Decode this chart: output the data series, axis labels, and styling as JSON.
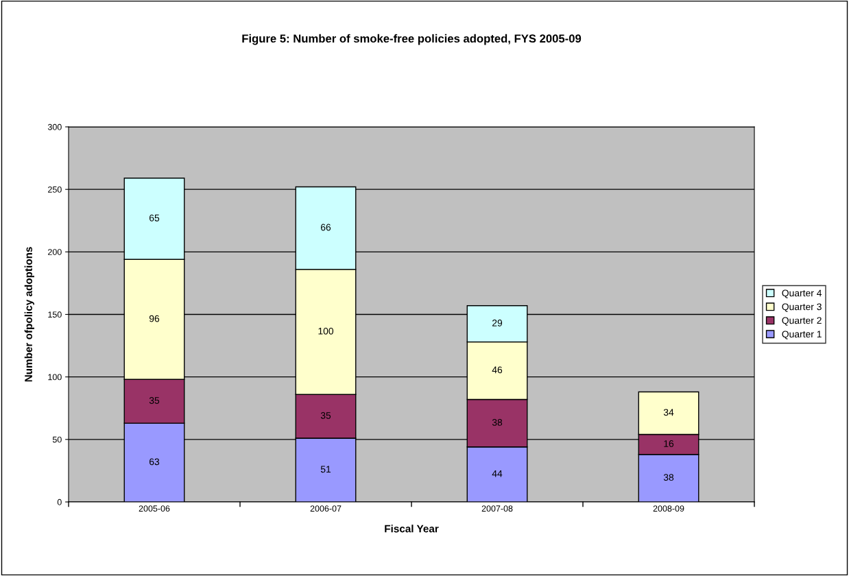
{
  "chart_data": {
    "type": "bar",
    "title": "Figure 5: Number of smoke-free policies adopted, FYS 2005-09",
    "xlabel": "Fiscal Year",
    "ylabel": "Number ofpolicy adoptions",
    "categories": [
      "2005-06",
      "2006-07",
      "2007-08",
      "2008-09"
    ],
    "series": [
      {
        "name": "Quarter 1",
        "color": "#9999ff",
        "values": [
          63,
          51,
          44,
          38
        ]
      },
      {
        "name": "Quarter 2",
        "color": "#993366",
        "values": [
          35,
          35,
          38,
          16
        ]
      },
      {
        "name": "Quarter 3",
        "color": "#ffffcc",
        "values": [
          96,
          100,
          46,
          34
        ]
      },
      {
        "name": "Quarter 4",
        "color": "#ccffff",
        "values": [
          65,
          66,
          29,
          null
        ]
      }
    ],
    "stacked": true,
    "data_labels": true,
    "ylim": [
      0,
      300
    ],
    "yticks": [
      0,
      50,
      100,
      150,
      200,
      250,
      300
    ],
    "grid": "y",
    "legend": "right"
  }
}
